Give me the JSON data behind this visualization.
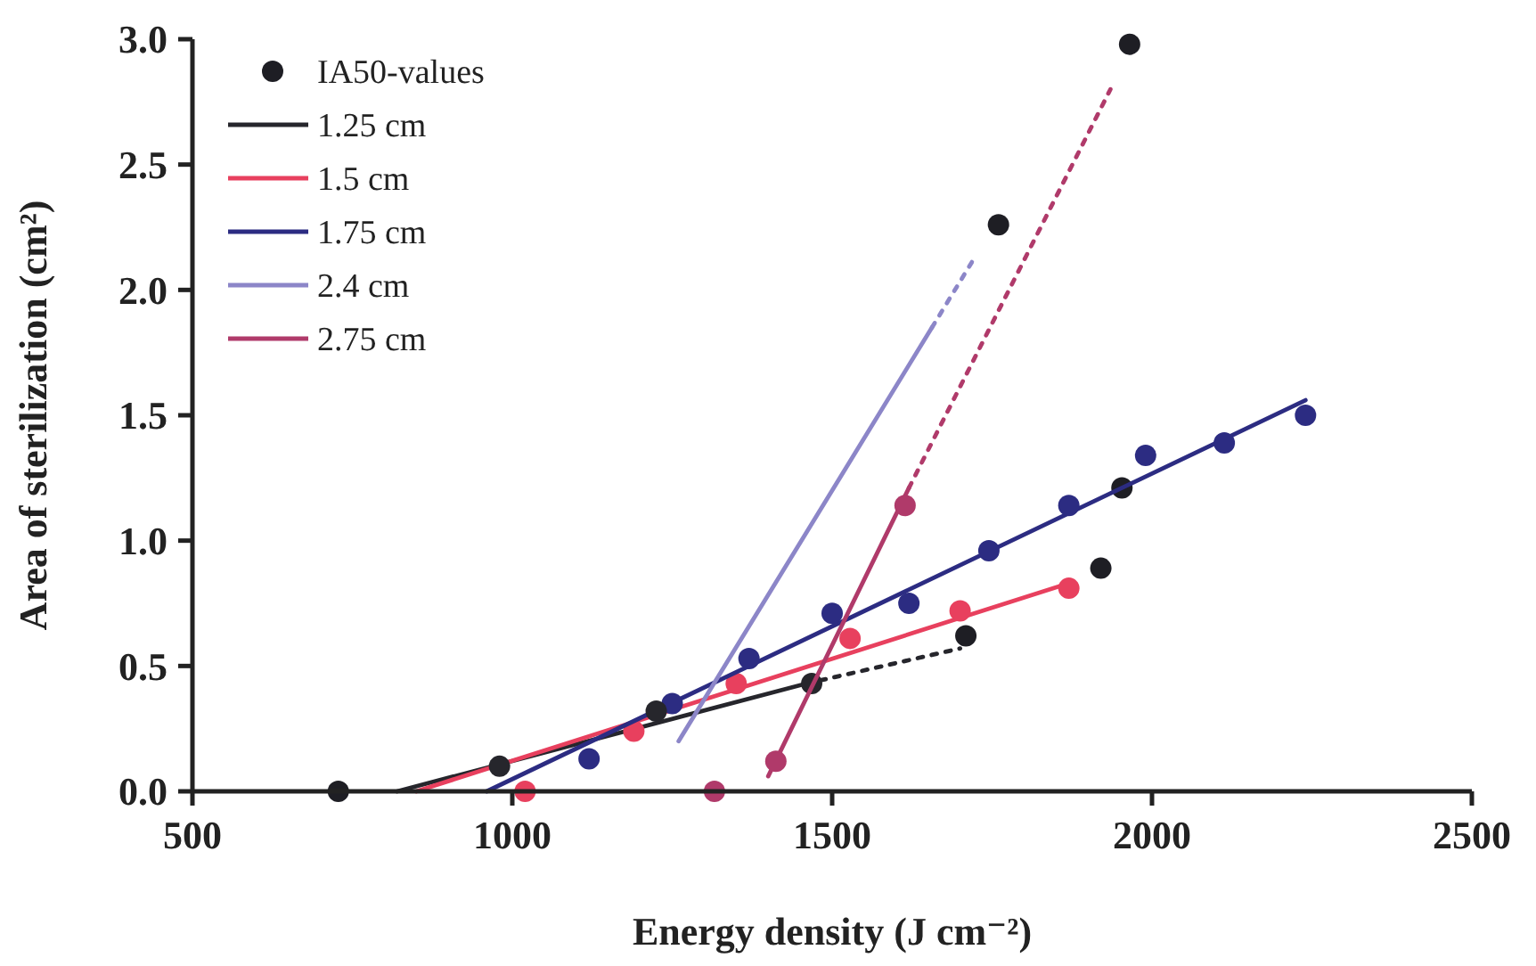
{
  "chart_data": {
    "type": "line",
    "xlabel": "Energy density (J cm⁻²)",
    "ylabel": "Area of sterilization (cm²)",
    "xlim": [
      500,
      2500
    ],
    "xticks": [
      500,
      1000,
      1500,
      2000,
      2500
    ],
    "ylim": [
      0,
      3
    ],
    "yticks": [
      {
        "value": 0,
        "label": "0.0"
      },
      {
        "value": 0.5,
        "label": "0.5"
      },
      {
        "value": 1,
        "label": "1.0"
      },
      {
        "value": 1.5,
        "label": "1.5"
      },
      {
        "value": 2,
        "label": "2.0"
      },
      {
        "value": 2.5,
        "label": "2.5"
      },
      {
        "value": 3,
        "label": "3.0"
      }
    ],
    "grid": false,
    "legend": "top left",
    "series": [
      {
        "type": "scatter",
        "name": "IA50-values",
        "color": "#1e1e24",
        "marker": "circle",
        "x": [
          728,
          1709,
          1920,
          1953,
          1760,
          1965
        ],
        "values": [
          0,
          0.62,
          0.89,
          1.21,
          2.26,
          2.98
        ]
      },
      {
        "name": "1.25 cm",
        "color": "#26262c",
        "line_style": "solid",
        "x": [
          820,
          1460
        ],
        "values": [
          0,
          0.43
        ]
      },
      {
        "color": "#26262c",
        "line_style": "dotted",
        "x": [
          1460,
          1700
        ],
        "values": [
          0.43,
          0.57
        ]
      },
      {
        "name": "1.5 cm",
        "color": "#e8405e",
        "line_style": "solid",
        "x": [
          850,
          1870
        ],
        "values": [
          0,
          0.83
        ]
      },
      {
        "type": "scatter",
        "color": "#e8405e",
        "marker": "circle",
        "x": [
          1020,
          1190,
          1350,
          1528,
          1700,
          1870
        ],
        "values": [
          0,
          0.24,
          0.43,
          0.61,
          0.72,
          0.81
        ]
      },
      {
        "name": "1.75 cm",
        "color": "#2c2c82",
        "line_style": "solid",
        "x": [
          960,
          2240
        ],
        "values": [
          0,
          1.56
        ]
      },
      {
        "type": "scatter",
        "color": "#2c2c82",
        "marker": "circle",
        "x": [
          1120,
          1250,
          1370,
          1500,
          1620,
          1745,
          1870,
          1990,
          2113,
          2240
        ],
        "values": [
          0.13,
          0.35,
          0.53,
          0.71,
          0.75,
          0.96,
          1.14,
          1.34,
          1.39,
          1.5
        ]
      },
      {
        "type": "scatter",
        "color": "#26262c",
        "marker": "circle",
        "x": [
          980,
          1225,
          1468
        ],
        "values": [
          0.1,
          0.32,
          0.43
        ]
      },
      {
        "name": "2.4 cm",
        "color": "#8c86c8",
        "line_style": "solid",
        "x": [
          1260,
          1656
        ],
        "values": [
          0.2,
          1.85
        ]
      },
      {
        "color": "#8c86c8",
        "line_style": "dotted",
        "x": [
          1656,
          1723
        ],
        "values": [
          1.85,
          2.13
        ]
      },
      {
        "name": "2.75 cm",
        "color": "#b03a6a",
        "line_style": "solid",
        "x": [
          1400,
          1620
        ],
        "values": [
          0.06,
          1.21
        ]
      },
      {
        "color": "#b03a6a",
        "line_style": "dotted",
        "x": [
          1620,
          1935
        ],
        "values": [
          1.21,
          2.8
        ]
      },
      {
        "type": "scatter",
        "color": "#b03a6a",
        "marker": "circle",
        "x": [
          1316,
          1412,
          1614
        ],
        "values": [
          0,
          0.12,
          1.14
        ]
      }
    ]
  }
}
